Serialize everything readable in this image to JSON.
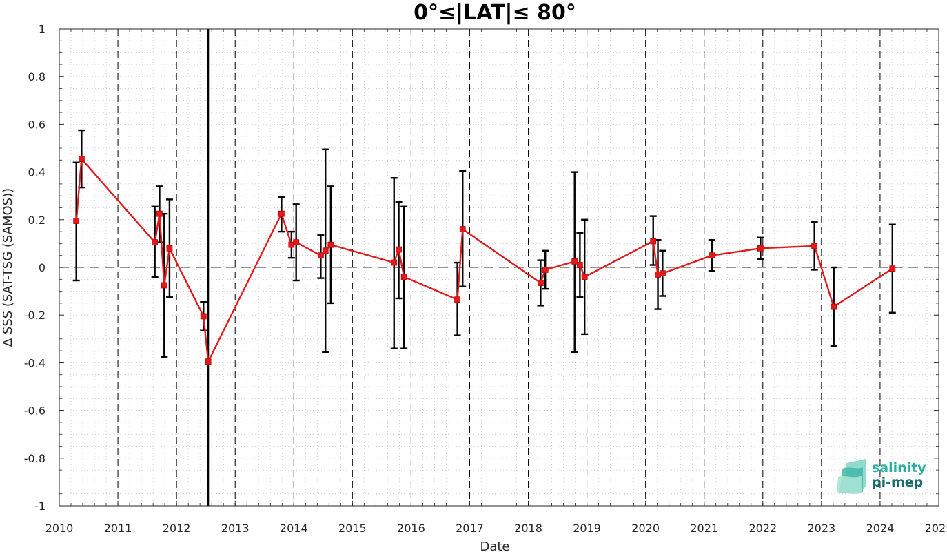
{
  "chart_data": {
    "type": "line",
    "title": "0°≤|LAT|≤ 80°",
    "xlabel": "Date",
    "ylabel": "Δ SSS (SAT-TSG (SAMOS))",
    "xlim": [
      2010,
      2025
    ],
    "ylim": [
      -1,
      1
    ],
    "x_ticks": [
      "2010",
      "2011",
      "2012",
      "2013",
      "2014",
      "2015",
      "2016",
      "2017",
      "2018",
      "2019",
      "2020",
      "2021",
      "2022",
      "2023",
      "2024",
      "2025"
    ],
    "y_ticks": [
      "-1",
      "-0.8",
      "-0.6",
      "-0.4",
      "-0.2",
      "0",
      "0.2",
      "0.4",
      "0.6",
      "0.8",
      "1"
    ],
    "grid": "minor dotted",
    "year_boundaries": "dashed vertical lines",
    "zero_line": "dashed horizontal line",
    "colors": {
      "series": "#e31a1c",
      "errorbar": "#000000",
      "reference": "#555555"
    },
    "series": [
      {
        "points": [
          {
            "x": 2010.29,
            "y": 0.195,
            "lo": -0.055,
            "hi": 0.44
          },
          {
            "x": 2010.38,
            "y": 0.455,
            "lo": 0.335,
            "hi": 0.575
          },
          {
            "x": 2011.63,
            "y": 0.105,
            "lo": -0.04,
            "hi": 0.255
          },
          {
            "x": 2011.71,
            "y": 0.225,
            "lo": 0.105,
            "hi": 0.34
          },
          {
            "x": 2011.79,
            "y": -0.075,
            "lo": -0.375,
            "hi": 0.225
          },
          {
            "x": 2011.88,
            "y": 0.08,
            "lo": -0.125,
            "hi": 0.285
          },
          {
            "x": 2012.46,
            "y": -0.205,
            "lo": -0.265,
            "hi": -0.145
          },
          {
            "x": 2012.54,
            "y": -0.395,
            "lo": -1.0,
            "hi": 1.0
          },
          {
            "x": 2013.79,
            "y": 0.225,
            "lo": 0.15,
            "hi": 0.295
          },
          {
            "x": 2013.96,
            "y": 0.095,
            "lo": 0.04,
            "hi": 0.15
          },
          {
            "x": 2014.04,
            "y": 0.105,
            "lo": -0.055,
            "hi": 0.265
          },
          {
            "x": 2014.46,
            "y": 0.05,
            "lo": -0.045,
            "hi": 0.135
          },
          {
            "x": 2014.54,
            "y": 0.07,
            "lo": -0.355,
            "hi": 0.495
          },
          {
            "x": 2014.63,
            "y": 0.095,
            "lo": -0.15,
            "hi": 0.34
          },
          {
            "x": 2015.71,
            "y": 0.02,
            "lo": -0.34,
            "hi": 0.375
          },
          {
            "x": 2015.79,
            "y": 0.075,
            "lo": -0.13,
            "hi": 0.275
          },
          {
            "x": 2015.88,
            "y": -0.04,
            "lo": -0.34,
            "hi": 0.255
          },
          {
            "x": 2016.79,
            "y": -0.135,
            "lo": -0.285,
            "hi": 0.02
          },
          {
            "x": 2016.88,
            "y": 0.16,
            "lo": -0.08,
            "hi": 0.405
          },
          {
            "x": 2018.21,
            "y": -0.065,
            "lo": -0.16,
            "hi": 0.03
          },
          {
            "x": 2018.29,
            "y": -0.01,
            "lo": -0.09,
            "hi": 0.07
          },
          {
            "x": 2018.79,
            "y": 0.025,
            "lo": -0.355,
            "hi": 0.4
          },
          {
            "x": 2018.88,
            "y": 0.01,
            "lo": -0.125,
            "hi": 0.145
          },
          {
            "x": 2018.96,
            "y": -0.04,
            "lo": -0.28,
            "hi": 0.2
          },
          {
            "x": 2020.13,
            "y": 0.11,
            "lo": 0.01,
            "hi": 0.215
          },
          {
            "x": 2020.21,
            "y": -0.03,
            "lo": -0.175,
            "hi": 0.115
          },
          {
            "x": 2020.29,
            "y": -0.025,
            "lo": -0.12,
            "hi": 0.07
          },
          {
            "x": 2021.13,
            "y": 0.05,
            "lo": -0.015,
            "hi": 0.115
          },
          {
            "x": 2021.96,
            "y": 0.08,
            "lo": 0.035,
            "hi": 0.125
          },
          {
            "x": 2022.88,
            "y": 0.09,
            "lo": -0.01,
            "hi": 0.19
          },
          {
            "x": 2023.21,
            "y": -0.165,
            "lo": -0.33,
            "hi": 0.0
          },
          {
            "x": 2024.21,
            "y": -0.005,
            "lo": -0.19,
            "hi": 0.18
          }
        ]
      }
    ]
  },
  "logo": {
    "line1": "salinity",
    "line2": "pi-mep",
    "color1": "#2bb0a0",
    "color2": "#1a6e6a"
  }
}
